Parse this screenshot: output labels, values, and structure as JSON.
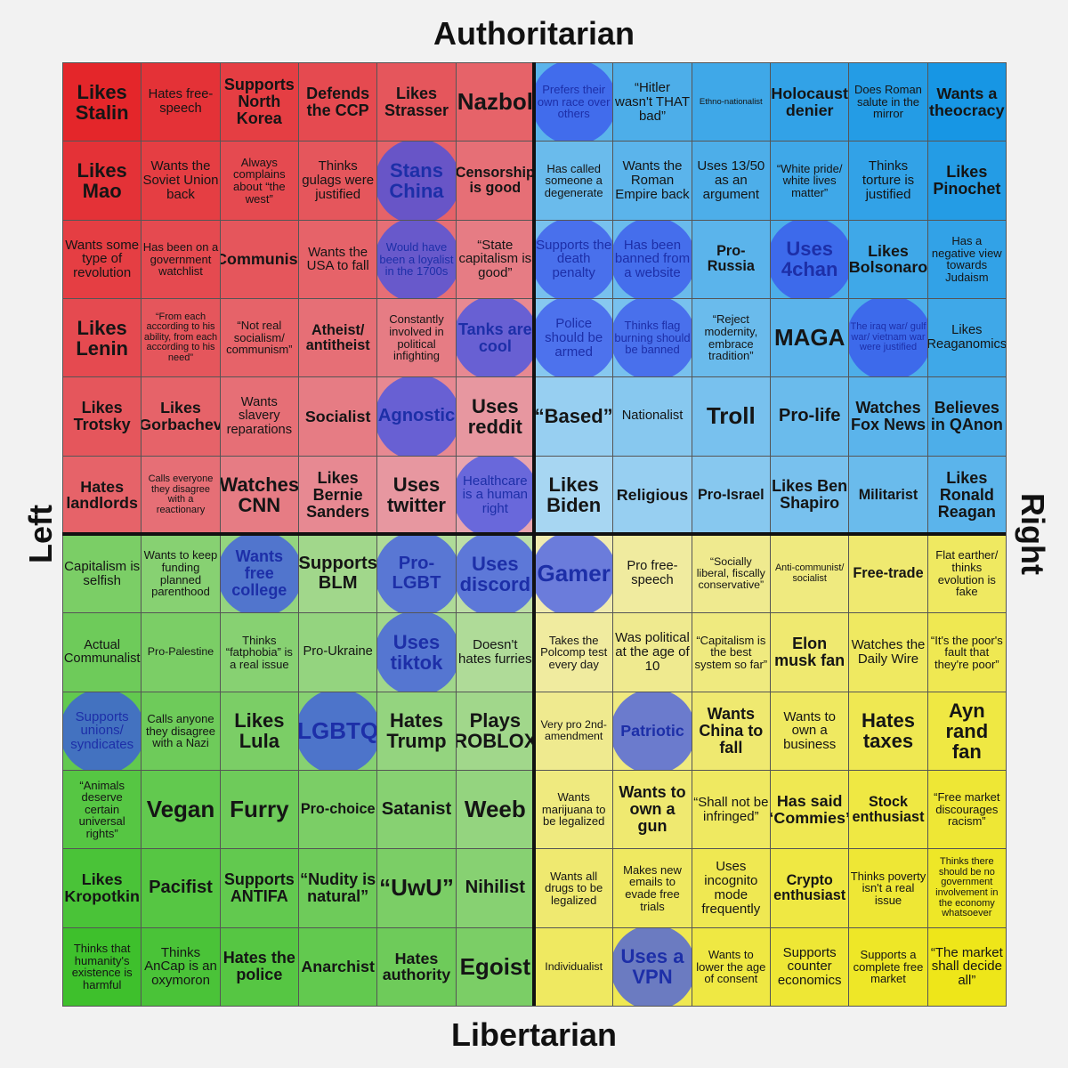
{
  "axes": {
    "top": "Authoritarian",
    "bottom": "Libertarian",
    "left": "Left",
    "right": "Right"
  },
  "grid": {
    "rows": [
      [
        "Likes Stalin",
        "Hates free-speech",
        "Supports North Korea",
        "Defends the CCP",
        "Likes Strasser",
        "Nazbol",
        "Prefers their own race over others",
        "“Hitler wasn't THAT bad”",
        "Ethno-nationalist",
        "Holocaust denier",
        "Does Roman salute in the mirror",
        "Wants a theocracy"
      ],
      [
        "Likes Mao",
        "Wants the Soviet Union back",
        "Always complains about “the west”",
        "Thinks gulags were justified",
        "Stans China",
        "Censorship is good",
        "Has called someone a degenerate",
        "Wants the Roman Empire back",
        "Uses 13/50 as an argument",
        "“White pride/ white lives matter”",
        "Thinks torture is justified",
        "Likes Pinochet"
      ],
      [
        "Wants some type of revolution",
        "Has been on a government watchlist",
        "Communist",
        "Wants the USA to fall",
        "Would have been a loyalist in the 1700s",
        "“State capitalism is good”",
        "Supports the death penalty",
        "Has been banned from a website",
        "Pro-Russia",
        "Uses 4chan",
        "Likes Bolsonaro",
        "Has a negative view towards Judaism"
      ],
      [
        "Likes Lenin",
        "“From each according to his ability, from each according to his need”",
        "“Not real socialism/ communism”",
        "Atheist/ antitheist",
        "Constantly involved in political infighting",
        "Tanks are cool",
        "Police should be armed",
        "Thinks flag burning should be banned",
        "“Reject modernity, embrace tradition”",
        "MAGA",
        "The iraq war/ gulf war/ vietnam war were justified",
        "Likes Reaganomics"
      ],
      [
        "Likes Trotsky",
        "Likes Gorbachev",
        "Wants slavery reparations",
        "Socialist",
        "Agnostic",
        "Uses reddit",
        "“Based”",
        "Nationalist",
        "Troll",
        "Pro-life",
        "Watches Fox News",
        "Believes in QAnon"
      ],
      [
        "Hates landlords",
        "Calls everyone they disagree with a reactionary",
        "Watches CNN",
        "Likes Bernie Sanders",
        "Uses twitter",
        "Healthcare is a human right",
        "Likes Biden",
        "Religious",
        "Pro-Israel",
        "Likes Ben Shapiro",
        "Militarist",
        "Likes Ronald Reagan"
      ],
      [
        "Capitalism is selfish",
        "Wants to keep funding planned parenthood",
        "Wants free college",
        "Supports BLM",
        "Pro-LGBT",
        "Uses discord",
        "Gamer",
        "Pro free-speech",
        "“Socially liberal, fiscally conservative”",
        "Anti-communist/ socialist",
        "Free-trade",
        "Flat earther/ thinks evolution is fake"
      ],
      [
        "Actual Communalist",
        "Pro-Palestine",
        "Thinks “fatphobia” is a real issue",
        "Pro-Ukraine",
        "Uses tiktok",
        "Doesn't hates furries",
        "Takes the Polcomp test every day",
        "Was political at the age of 10",
        "“Capitalism is the best system so far”",
        "Elon musk fan",
        "Watches the Daily Wire",
        "“It's the poor's fault that they're poor”"
      ],
      [
        "Supports unions/ syndicates",
        "Calls anyone they disagree with a Nazi",
        "Likes Lula",
        "LGBTQ",
        "Hates Trump",
        "Plays ROBLOX",
        "Very pro 2nd-amendment",
        "Patriotic",
        "Wants China to fall",
        "Wants to own a business",
        "Hates taxes",
        "Ayn rand fan"
      ],
      [
        "“Animals deserve certain universal rights”",
        "Vegan",
        "Furry",
        "Pro-choice",
        "Satanist",
        "Weeb",
        "Wants marijuana to be legalized",
        "Wants to own a gun",
        "“Shall not be infringed”",
        "Has said “Commies”",
        "Stock enthusiast",
        "“Free market discourages racism”"
      ],
      [
        "Likes Kropotkin",
        "Pacifist",
        "Supports ANTIFA",
        "“Nudity is natural”",
        "“UwU”",
        "Nihilist",
        "Wants all drugs to be legalized",
        "Makes new emails to evade free trials",
        "Uses incognito mode frequently",
        "Crypto enthusiast",
        "Thinks poverty isn't a real issue",
        "Thinks there should be no government involvement in the economy whatsoever"
      ],
      [
        "Thinks that humanity's existence is harmful",
        "Thinks AnCap is an oxymoron",
        "Hates the police",
        "Anarchist",
        "Hates authority",
        "Egoist",
        "Individualist",
        "Uses a VPN",
        "Wants to lower the age of consent",
        "Supports counter economics",
        "Supports a complete free market",
        "“The market shall decide all”"
      ]
    ]
  }
}
